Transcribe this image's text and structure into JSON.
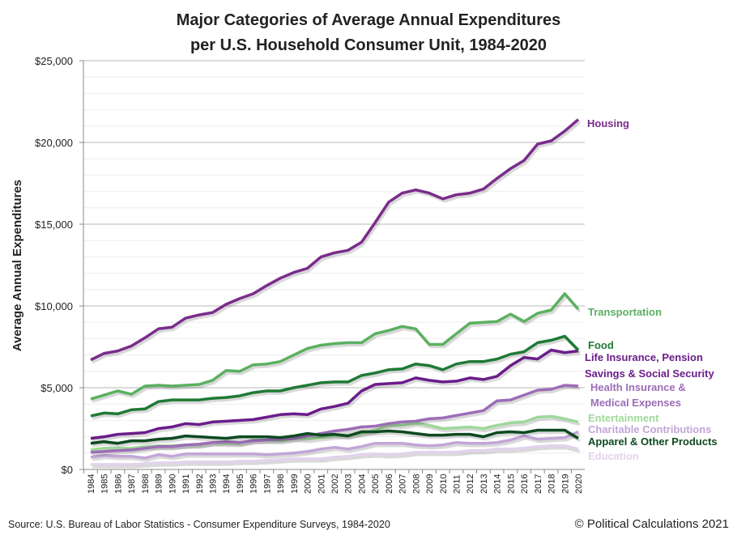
{
  "chart_data": {
    "type": "line",
    "title_lines": [
      "Major Categories of Average Annual Expenditures",
      "per U.S. Household Consumer Unit, 1984-2020"
    ],
    "ylabel": "Average Annual Expenditures",
    "xlabel": "",
    "ylim": [
      0,
      25000
    ],
    "yticks": [
      0,
      5000,
      10000,
      15000,
      20000,
      25000
    ],
    "ytick_labels": [
      "$0",
      "$5,000",
      "$10,000",
      "$15,000",
      "$20,000",
      "$25,000"
    ],
    "grid": true,
    "legend": "direct labels at right end of lines",
    "x": [
      1984,
      1985,
      1986,
      1987,
      1988,
      1989,
      1990,
      1991,
      1992,
      1993,
      1994,
      1995,
      1996,
      1997,
      1998,
      1999,
      2000,
      2001,
      2002,
      2003,
      2004,
      2005,
      2006,
      2007,
      2008,
      2009,
      2010,
      2011,
      2012,
      2013,
      2014,
      2015,
      2016,
      2017,
      2018,
      2019,
      2020
    ],
    "series": [
      {
        "name": "Education",
        "label_lines": [
          "Education"
        ],
        "color": "#e2d3ec",
        "values": [
          300,
          300,
          300,
          300,
          350,
          400,
          400,
          450,
          450,
          450,
          450,
          500,
          500,
          550,
          600,
          650,
          650,
          650,
          750,
          800,
          900,
          950,
          900,
          950,
          1050,
          1050,
          1050,
          1050,
          1150,
          1150,
          1250,
          1250,
          1300,
          1400,
          1450,
          1450,
          1250
        ]
      },
      {
        "name": "Charitable Contributions",
        "label_lines": [
          "Charitable Contributions"
        ],
        "color": "#c3a5d9",
        "values": [
          750,
          850,
          800,
          800,
          700,
          900,
          800,
          950,
          950,
          950,
          950,
          950,
          950,
          900,
          950,
          1000,
          1100,
          1250,
          1350,
          1250,
          1400,
          1600,
          1600,
          1600,
          1500,
          1450,
          1500,
          1650,
          1600,
          1600,
          1650,
          1800,
          2050,
          1850,
          1900,
          1950,
          2300
        ]
      },
      {
        "name": "Entertainment",
        "label_lines": [
          "Entertainment"
        ],
        "color": "#9fd89a",
        "values": [
          1200,
          1300,
          1300,
          1300,
          1400,
          1450,
          1450,
          1500,
          1500,
          1650,
          1600,
          1600,
          1800,
          1800,
          1750,
          1900,
          1850,
          1950,
          2050,
          2100,
          2200,
          2400,
          2700,
          2700,
          2850,
          2700,
          2500,
          2550,
          2600,
          2500,
          2700,
          2850,
          2900,
          3200,
          3250,
          3100,
          2900
        ]
      },
      {
        "name": "Health Insurance & Medical Expenses",
        "label_lines": [
          "Health Insurance &",
          "Medical Expenses"
        ],
        "color": "#9c6db7",
        "values": [
          1050,
          1100,
          1150,
          1200,
          1300,
          1400,
          1400,
          1500,
          1550,
          1650,
          1700,
          1650,
          1750,
          1800,
          1850,
          1900,
          2050,
          2200,
          2350,
          2450,
          2600,
          2650,
          2800,
          2900,
          2950,
          3100,
          3150,
          3300,
          3450,
          3600,
          4200,
          4250,
          4550,
          4850,
          4900,
          5150,
          5100
        ]
      },
      {
        "name": "Apparel & Other Products",
        "label_lines": [
          "Apparel & Other Products"
        ],
        "color": "#0e4a20",
        "values": [
          1600,
          1700,
          1600,
          1750,
          1750,
          1850,
          1900,
          2050,
          2000,
          1950,
          1900,
          2000,
          2000,
          2000,
          1950,
          2050,
          2200,
          2100,
          2150,
          2050,
          2300,
          2300,
          2350,
          2300,
          2200,
          2100,
          2100,
          2150,
          2150,
          2000,
          2250,
          2300,
          2250,
          2400,
          2400,
          2400,
          1900
        ]
      },
      {
        "name": "Life Insurance, Pension Savings & Social Security",
        "label_lines": [
          "Life Insurance, Pension",
          "Savings & Social Security"
        ],
        "color": "#6b1d8a",
        "values": [
          1900,
          2000,
          2150,
          2200,
          2250,
          2500,
          2600,
          2800,
          2750,
          2900,
          2950,
          3000,
          3050,
          3200,
          3350,
          3400,
          3350,
          3700,
          3850,
          4050,
          4800,
          5200,
          5250,
          5300,
          5600,
          5450,
          5350,
          5400,
          5600,
          5500,
          5700,
          6350,
          6850,
          6750,
          7300,
          7150,
          7250
        ]
      },
      {
        "name": "Food",
        "label_lines": [
          "Food"
        ],
        "color": "#1f7a36",
        "values": [
          3270,
          3450,
          3400,
          3650,
          3700,
          4150,
          4250,
          4250,
          4250,
          4350,
          4400,
          4500,
          4700,
          4800,
          4800,
          5000,
          5150,
          5300,
          5350,
          5350,
          5750,
          5900,
          6100,
          6150,
          6450,
          6350,
          6100,
          6450,
          6600,
          6600,
          6750,
          7050,
          7200,
          7750,
          7900,
          8150,
          7300
        ]
      },
      {
        "name": "Transportation",
        "label_lines": [
          "Transportation"
        ],
        "color": "#5bb060",
        "values": [
          4300,
          4550,
          4800,
          4600,
          5100,
          5150,
          5100,
          5150,
          5200,
          5450,
          6050,
          6000,
          6400,
          6450,
          6600,
          7000,
          7400,
          7600,
          7700,
          7750,
          7750,
          8300,
          8500,
          8750,
          8600,
          7650,
          7650,
          8300,
          8950,
          9000,
          9050,
          9500,
          9050,
          9550,
          9750,
          10750,
          9800
        ]
      },
      {
        "name": "Housing",
        "label_lines": [
          "Housing"
        ],
        "color": "#7a2c8b",
        "values": [
          6700,
          7100,
          7250,
          7550,
          8050,
          8600,
          8700,
          9250,
          9450,
          9600,
          10100,
          10450,
          10750,
          11250,
          11700,
          12050,
          12300,
          13000,
          13250,
          13400,
          13900,
          15100,
          16350,
          16900,
          17100,
          16900,
          16550,
          16800,
          16900,
          17150,
          17800,
          18400,
          18900,
          19900,
          20100,
          20700,
          21400
        ]
      }
    ]
  },
  "footer": {
    "source": "Source: U.S. Bureau of Labor Statistics - Consumer Expenditure Surveys, 1984-2020",
    "copyright": "© Political Calculations 2021"
  }
}
